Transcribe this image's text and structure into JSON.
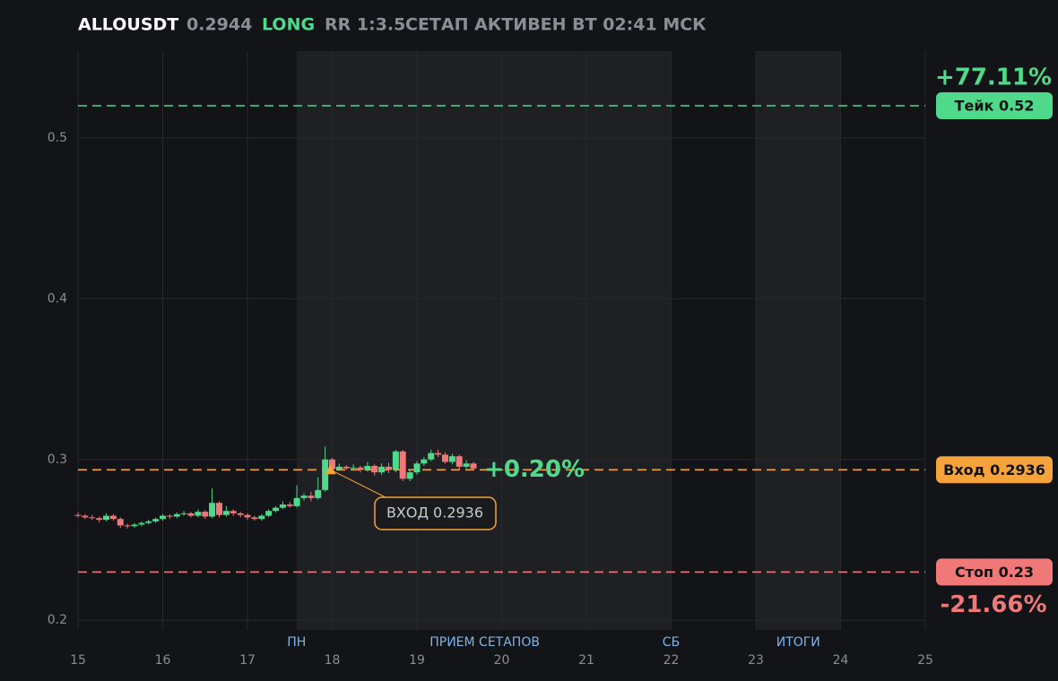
{
  "chart_data": {
    "type": "candlestick",
    "header": {
      "symbol": "ALLOUSDT",
      "price": 0.2944,
      "side": "LONG",
      "rr": "RR 1:3.5",
      "status": "СЕТАП АКТИВЕН ВТ 02:41 МСК"
    },
    "xlim": [
      15,
      25
    ],
    "xticks": [
      15,
      16,
      17,
      18,
      19,
      20,
      21,
      22,
      23,
      24,
      25
    ],
    "ylim": [
      0.194,
      0.554
    ],
    "yticks": [
      0.2,
      0.3,
      0.4,
      0.5
    ],
    "grid": true,
    "up_color": "#4fd98a",
    "down_color": "#f07878",
    "shaded": [
      [
        17.58,
        22
      ],
      [
        23,
        24
      ]
    ],
    "session_labels": [
      {
        "x": 17.58,
        "label": "ПН"
      },
      {
        "x": 19.8,
        "label": "ПРИЕМ СЕТАПОВ"
      },
      {
        "x": 22,
        "label": "СБ"
      },
      {
        "x": 23.5,
        "label": "ИТОГИ"
      }
    ],
    "levels": [
      {
        "value": 0.52,
        "label": "Тейк 0.52",
        "color": "#4fd98a",
        "pct": "+77.11%"
      },
      {
        "value": 0.2936,
        "label": "Вход 0.2936",
        "color": "#f5a33a",
        "pct": "+0.20%"
      },
      {
        "value": 0.23,
        "label": "Стоп 0.23",
        "color": "#f07878",
        "pct": "-21.66%"
      }
    ],
    "entry_marker": {
      "x": 17.98,
      "value": 0.2936,
      "label": "ВХОД 0.2936"
    },
    "x": [
      15,
      15.083,
      15.167,
      15.25,
      15.333,
      15.417,
      15.5,
      15.583,
      15.667,
      15.75,
      15.833,
      15.917,
      16,
      16.083,
      16.167,
      16.25,
      16.333,
      16.417,
      16.5,
      16.583,
      16.667,
      16.75,
      16.833,
      16.917,
      17,
      17.083,
      17.167,
      17.25,
      17.333,
      17.417,
      17.5,
      17.583,
      17.667,
      17.75,
      17.833,
      17.917,
      18,
      18.083,
      18.167,
      18.25,
      18.333,
      18.417,
      18.5,
      18.583,
      18.667,
      18.75,
      18.833,
      18.917,
      19,
      19.083,
      19.167,
      19.25,
      19.333,
      19.417,
      19.5,
      19.583,
      19.667
    ],
    "open": [
      0.2655,
      0.265,
      0.264,
      0.2635,
      0.2625,
      0.265,
      0.263,
      0.259,
      0.2585,
      0.2595,
      0.2605,
      0.2615,
      0.263,
      0.265,
      0.2645,
      0.266,
      0.2665,
      0.265,
      0.2675,
      0.2645,
      0.273,
      0.2655,
      0.268,
      0.2665,
      0.2655,
      0.264,
      0.263,
      0.265,
      0.268,
      0.27,
      0.272,
      0.271,
      0.276,
      0.2775,
      0.276,
      0.281,
      0.3,
      0.294,
      0.2955,
      0.2945,
      0.295,
      0.2935,
      0.296,
      0.292,
      0.2955,
      0.2935,
      0.305,
      0.288,
      0.292,
      0.2975,
      0.3,
      0.304,
      0.303,
      0.2985,
      0.302,
      0.2955,
      0.2975
    ],
    "high": [
      0.267,
      0.266,
      0.2655,
      0.2645,
      0.2665,
      0.266,
      0.264,
      0.26,
      0.2605,
      0.2615,
      0.2625,
      0.264,
      0.266,
      0.266,
      0.267,
      0.268,
      0.2675,
      0.269,
      0.2685,
      0.282,
      0.274,
      0.271,
      0.269,
      0.2675,
      0.2665,
      0.265,
      0.266,
      0.269,
      0.271,
      0.274,
      0.2735,
      0.284,
      0.279,
      0.28,
      0.289,
      0.308,
      0.301,
      0.2975,
      0.2965,
      0.297,
      0.296,
      0.2985,
      0.297,
      0.2975,
      0.298,
      0.306,
      0.306,
      0.2935,
      0.299,
      0.3015,
      0.306,
      0.306,
      0.3045,
      0.3035,
      0.303,
      0.2995,
      0.2985
    ],
    "low": [
      0.264,
      0.263,
      0.2625,
      0.261,
      0.2615,
      0.262,
      0.2575,
      0.257,
      0.2575,
      0.2585,
      0.2595,
      0.2605,
      0.262,
      0.263,
      0.2635,
      0.265,
      0.264,
      0.264,
      0.263,
      0.2635,
      0.264,
      0.2645,
      0.265,
      0.264,
      0.2625,
      0.262,
      0.262,
      0.264,
      0.267,
      0.269,
      0.27,
      0.27,
      0.2745,
      0.274,
      0.275,
      0.28,
      0.2925,
      0.293,
      0.2935,
      0.2935,
      0.292,
      0.2925,
      0.29,
      0.2905,
      0.2915,
      0.292,
      0.2865,
      0.2865,
      0.2905,
      0.296,
      0.299,
      0.3015,
      0.2975,
      0.297,
      0.2935,
      0.2945,
      0.2935
    ],
    "close": [
      0.265,
      0.264,
      0.2635,
      0.2625,
      0.265,
      0.263,
      0.259,
      0.2585,
      0.2595,
      0.2605,
      0.2615,
      0.263,
      0.265,
      0.2645,
      0.266,
      0.2665,
      0.265,
      0.2675,
      0.2645,
      0.273,
      0.2655,
      0.268,
      0.2665,
      0.2655,
      0.264,
      0.263,
      0.265,
      0.268,
      0.27,
      0.272,
      0.271,
      0.276,
      0.2775,
      0.276,
      0.281,
      0.3,
      0.294,
      0.2955,
      0.2945,
      0.295,
      0.2935,
      0.296,
      0.292,
      0.2955,
      0.2935,
      0.305,
      0.288,
      0.292,
      0.2975,
      0.3,
      0.304,
      0.303,
      0.2985,
      0.302,
      0.2955,
      0.2975,
      0.2944
    ]
  }
}
